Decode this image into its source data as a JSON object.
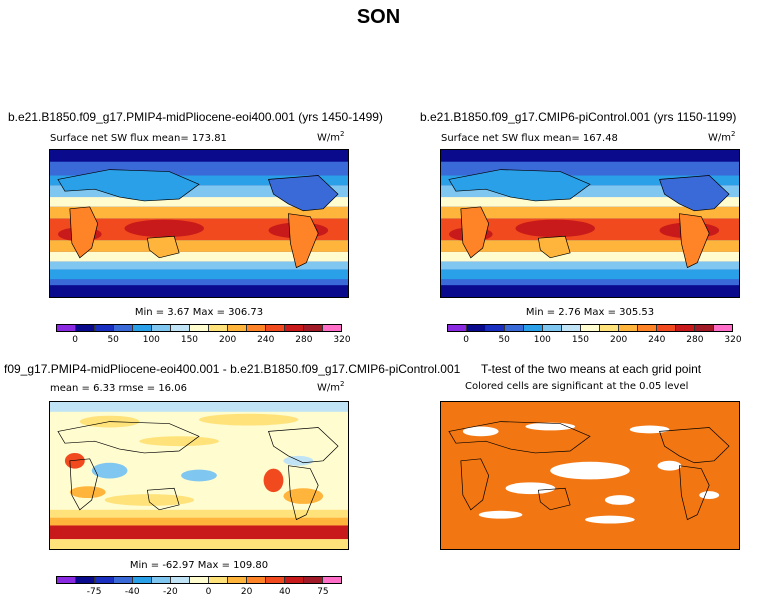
{
  "season": "SON",
  "panels": {
    "p1": {
      "title": "b.e21.B1850.f09_g17.PMIP4-midPliocene-eoi400.001 (yrs 1450-1499)",
      "subtitle": "Surface net SW flux mean= 173.81",
      "unit": "W/m",
      "unit_exp": "2",
      "stats": "Min =    3.67 Max = 306.73",
      "ticks": [
        "0",
        "50",
        "100",
        "150",
        "200",
        "240",
        "280",
        "320"
      ]
    },
    "p2": {
      "title": "b.e21.B1850.f09_g17.CMIP6-piControl.001 (yrs 1150-1199)",
      "subtitle": "Surface net SW flux mean= 167.48",
      "unit": "W/m",
      "unit_exp": "2",
      "stats": "Min =    2.76 Max = 305.53",
      "ticks": [
        "0",
        "50",
        "100",
        "150",
        "200",
        "240",
        "280",
        "320"
      ]
    },
    "p3": {
      "title": "f09_g17.PMIP4-midPliocene-eoi400.001 - b.e21.B1850.f09_g17.CMIP6-piControl.001",
      "subtitle": "mean =    6.33     rmse =   16.06",
      "unit": "W/m",
      "unit_exp": "2",
      "stats": "Min = -62.97 Max = 109.80",
      "ticks": [
        "-75",
        "-40",
        "-20",
        "0",
        "20",
        "40",
        "75"
      ]
    },
    "p4": {
      "title": "T-test of the two means at each grid point",
      "subtitle": "Colored cells are significant at the 0.05 level"
    }
  },
  "colors": {
    "abs_scale": [
      "#8a2be2",
      "#0a0a8c",
      "#1a2fc0",
      "#3a6ad8",
      "#2aa0e8",
      "#7fc6f0",
      "#c0e4f5",
      "#fffcd0",
      "#ffe27a",
      "#ffb43c",
      "#ff8428",
      "#f04a1e",
      "#c81a1a",
      "#a01a28",
      "#ff6ec7"
    ],
    "diff_scale": [
      "#8a2be2",
      "#0a0a8c",
      "#1a2fc0",
      "#3a6ad8",
      "#2aa0e8",
      "#7fc6f0",
      "#c0e4f5",
      "#fffcd0",
      "#ffe27a",
      "#ffb43c",
      "#ff8428",
      "#f04a1e",
      "#c81a1a",
      "#a01a28",
      "#ff6ec7"
    ],
    "ttest": "#f27612"
  }
}
